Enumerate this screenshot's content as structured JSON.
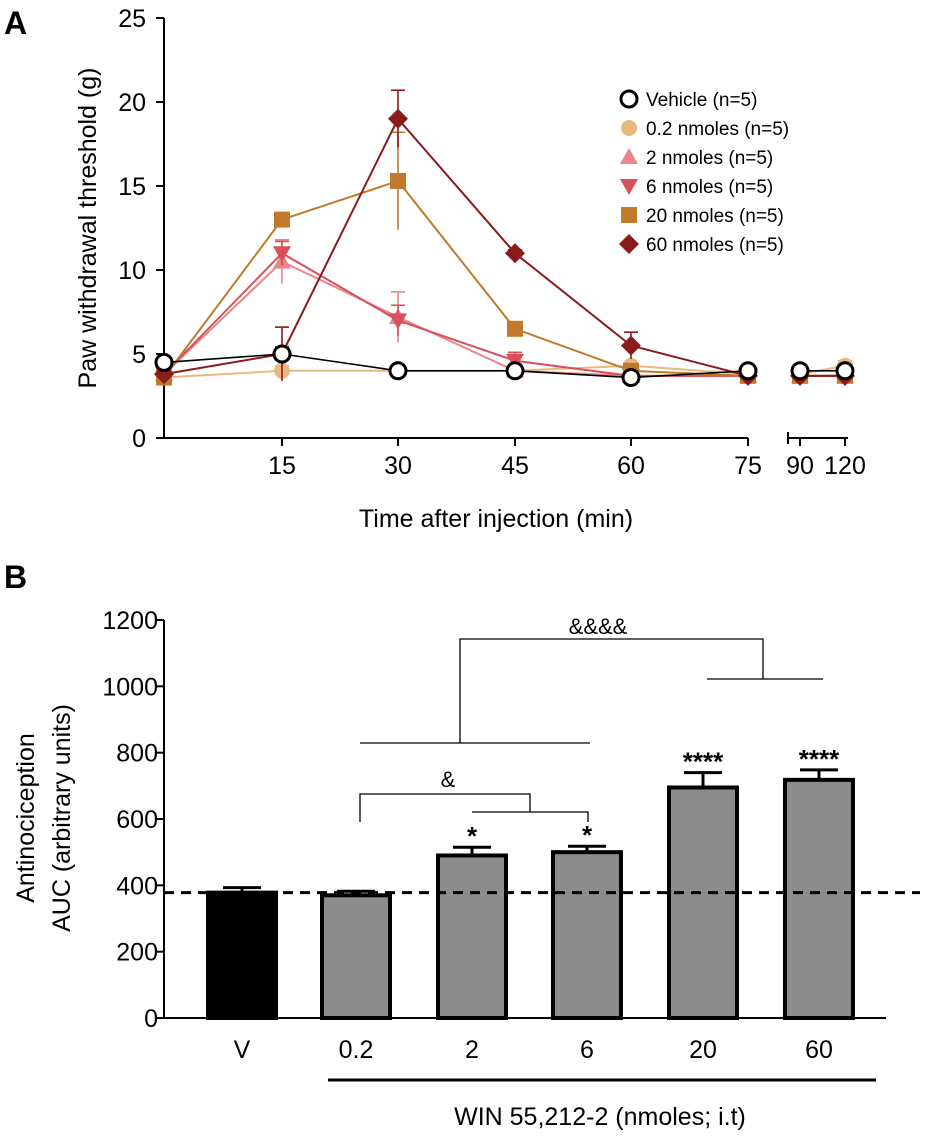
{
  "panels": {
    "a_letter": "A",
    "b_letter": "B"
  },
  "chart_data": [
    {
      "type": "line",
      "panel": "A",
      "ylabel": "Paw withdrawal threshold (g)",
      "xlabel": "Time after injection (min)",
      "ylim": [
        0,
        25
      ],
      "yticks": [
        "0",
        "5",
        "10",
        "15",
        "20",
        "25"
      ],
      "xticks": [
        "15",
        "30",
        "45",
        "60",
        "75",
        "90",
        "120"
      ],
      "x_time_slots": [
        0,
        15,
        30,
        45,
        60,
        75,
        90,
        120
      ],
      "legend_position": "top-right",
      "series": [
        {
          "name": "Vehicle (n=5)",
          "marker": "open-circle",
          "color": "#000000",
          "x": [
            0,
            15,
            30,
            45,
            60,
            75,
            90,
            120
          ],
          "values": [
            4.5,
            5.0,
            4.0,
            4.0,
            3.6,
            4.0,
            4.0,
            4.0
          ],
          "err": [
            0.3,
            0.4,
            0.2,
            0.2,
            0.2,
            0.2,
            0.2,
            0.2
          ]
        },
        {
          "name": "0.2 nmoles (n=5)",
          "marker": "filled-circle",
          "color": "#e8b97e",
          "x": [
            0,
            15,
            30,
            45,
            60,
            75,
            90,
            120
          ],
          "values": [
            3.6,
            4.0,
            4.0,
            4.0,
            4.3,
            3.8,
            3.8,
            4.3
          ],
          "err": [
            0.2,
            0.3,
            0.2,
            0.2,
            0.2,
            0.2,
            0.2,
            0.3
          ]
        },
        {
          "name": "2 nmoles (n=5)",
          "marker": "triangle-up",
          "color": "#e8868a",
          "x": [
            0,
            15,
            30,
            45,
            60,
            75,
            90,
            120
          ],
          "values": [
            3.8,
            10.5,
            7.2,
            4.0,
            3.7,
            3.7,
            3.7,
            3.7
          ],
          "err": [
            0.2,
            1.3,
            1.5,
            0.4,
            0.2,
            0.2,
            0.2,
            0.2
          ]
        },
        {
          "name": "6 nmoles (n=5)",
          "marker": "triangle-down",
          "color": "#d94f5c",
          "x": [
            0,
            15,
            30,
            45,
            60,
            75,
            90,
            120
          ],
          "values": [
            3.8,
            11.0,
            7.0,
            4.6,
            3.7,
            3.7,
            3.7,
            3.7
          ],
          "err": [
            0.2,
            0.7,
            0.9,
            0.5,
            0.2,
            0.2,
            0.2,
            0.2
          ]
        },
        {
          "name": "20 nmoles (n=5)",
          "marker": "square",
          "color": "#c07a2c",
          "x": [
            0,
            15,
            30,
            45,
            60,
            75,
            90,
            120
          ],
          "values": [
            3.6,
            13.0,
            15.3,
            6.5,
            4.0,
            3.7,
            3.7,
            3.7
          ],
          "err": [
            0.2,
            0.3,
            2.9,
            0.3,
            0.2,
            0.2,
            0.2,
            0.2
          ]
        },
        {
          "name": "60 nmoles (n=5)",
          "marker": "diamond",
          "color": "#8b1a1a",
          "x": [
            0,
            15,
            30,
            45,
            60,
            75,
            90,
            120
          ],
          "values": [
            3.8,
            5.0,
            19.0,
            11.0,
            5.5,
            3.7,
            3.7,
            3.7
          ],
          "err": [
            0.2,
            1.6,
            1.7,
            0.2,
            0.8,
            0.2,
            0.2,
            0.2
          ]
        }
      ]
    },
    {
      "type": "bar",
      "panel": "B",
      "ylabel_line1": "Antinociception",
      "ylabel_line2": "AUC (arbitrary units)",
      "ylim": [
        0,
        1200
      ],
      "yticks": [
        "0",
        "200",
        "400",
        "600",
        "800",
        "1000",
        "1200"
      ],
      "categories": [
        "V",
        "0.2",
        "2",
        "6",
        "20",
        "60"
      ],
      "values": [
        378,
        370,
        490,
        500,
        695,
        718
      ],
      "err": [
        15,
        12,
        25,
        18,
        45,
        30
      ],
      "bar_colors": [
        "#000000",
        "#8c8c8c",
        "#8c8c8c",
        "#8c8c8c",
        "#8c8c8c",
        "#8c8c8c"
      ],
      "significance": [
        "",
        "",
        "*",
        "*",
        "****",
        "****"
      ],
      "reference_line_value": 378,
      "group_label": "WIN  55,212-2 (nmoles; i.t)",
      "comparison_small_label": "&",
      "comparison_large_label": "&&&&"
    }
  ]
}
